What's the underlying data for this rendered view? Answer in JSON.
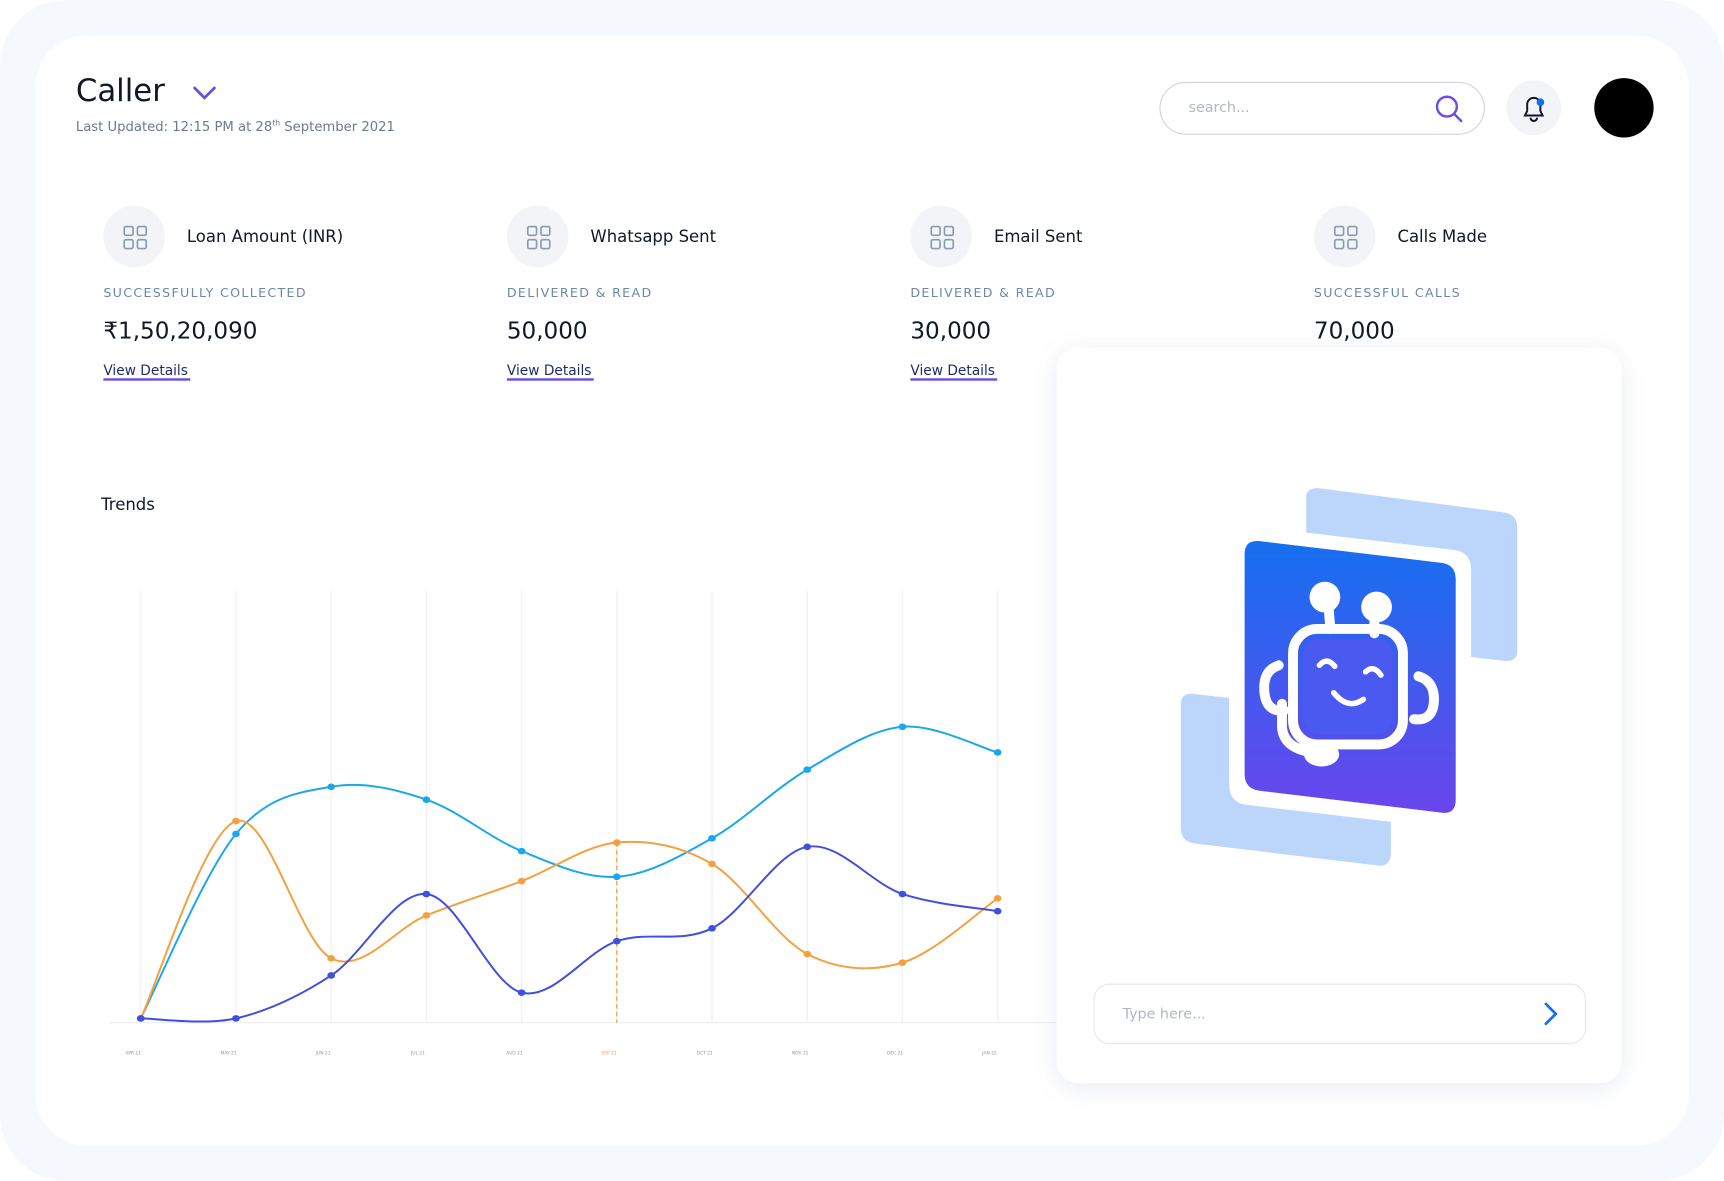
{
  "header": {
    "title": "Caller",
    "updated": [
      "Last Updated: 12:15 PM at 28",
      "th",
      " September 2021"
    ],
    "search_placeholder": "search..."
  },
  "cards": [
    {
      "title": "Loan Amount (INR)",
      "label": "SUCCESSFULLY COLLECTED",
      "value": "₹1,50,20,090",
      "link": "View Details"
    },
    {
      "title": "Whatsapp Sent",
      "label": "DELIVERED & READ",
      "value": "50,000",
      "link": "View Details"
    },
    {
      "title": "Email Sent",
      "label": "DELIVERED & READ",
      "value": "30,000",
      "link": "View Details"
    },
    {
      "title": "Calls Made",
      "label": "SUCCESSFUL CALLS",
      "value": "70,000"
    }
  ],
  "chart_data": {
    "type": "line",
    "title": "Trends",
    "categories": [
      "APR 21",
      "MAY 21",
      "JUN 21",
      "JUL 21",
      "AUG 21",
      "SEP 21",
      "OCT 21",
      "NOV 21",
      "DEC 21",
      "JAN 22"
    ],
    "ylim": [
      0,
      100
    ],
    "series": [
      {
        "color": "#1aa7ec",
        "values": [
          1,
          44,
          55,
          52,
          40,
          34,
          43,
          59,
          69,
          63
        ]
      },
      {
        "color": "#f4a040",
        "values": [
          1,
          47,
          15,
          25,
          33,
          42,
          37,
          16,
          14,
          29
        ]
      },
      {
        "color": "#3f4fe0",
        "values": [
          1,
          1,
          11,
          30,
          7,
          19,
          22,
          41,
          30,
          26
        ]
      }
    ]
  },
  "chat": {
    "placeholder": "Type here..."
  }
}
